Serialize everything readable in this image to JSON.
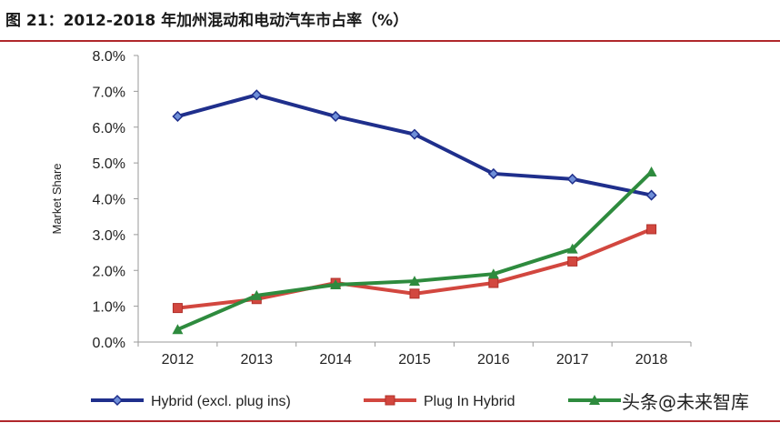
{
  "header": {
    "title": "图 21：2012-2018 年加州混动和电动汽车市占率（%）"
  },
  "watermark": "头条@未来智库",
  "chart_data": {
    "type": "line",
    "title": "",
    "xlabel": "",
    "ylabel": "Market Share",
    "categories": [
      "2012",
      "2013",
      "2014",
      "2015",
      "2016",
      "2017",
      "2018"
    ],
    "ylim": [
      0,
      8
    ],
    "yticks": [
      "0.0%",
      "1.0%",
      "2.0%",
      "3.0%",
      "4.0%",
      "5.0%",
      "6.0%",
      "7.0%",
      "8.0%"
    ],
    "grid": false,
    "legend_position": "bottom",
    "series": [
      {
        "name": "Hybrid (excl. plug ins)",
        "color": "#1f2f8c",
        "marker": "diamond",
        "values": [
          6.3,
          6.9,
          6.3,
          5.8,
          4.7,
          4.55,
          4.1
        ]
      },
      {
        "name": "Plug In Hybrid",
        "color": "#d2473f",
        "marker": "square",
        "values": [
          0.95,
          1.2,
          1.65,
          1.35,
          1.65,
          2.25,
          3.15
        ]
      },
      {
        "name": "",
        "color": "#2e8b3e",
        "marker": "triangle",
        "values": [
          0.35,
          1.3,
          1.6,
          1.7,
          1.9,
          2.6,
          4.75
        ]
      }
    ]
  }
}
